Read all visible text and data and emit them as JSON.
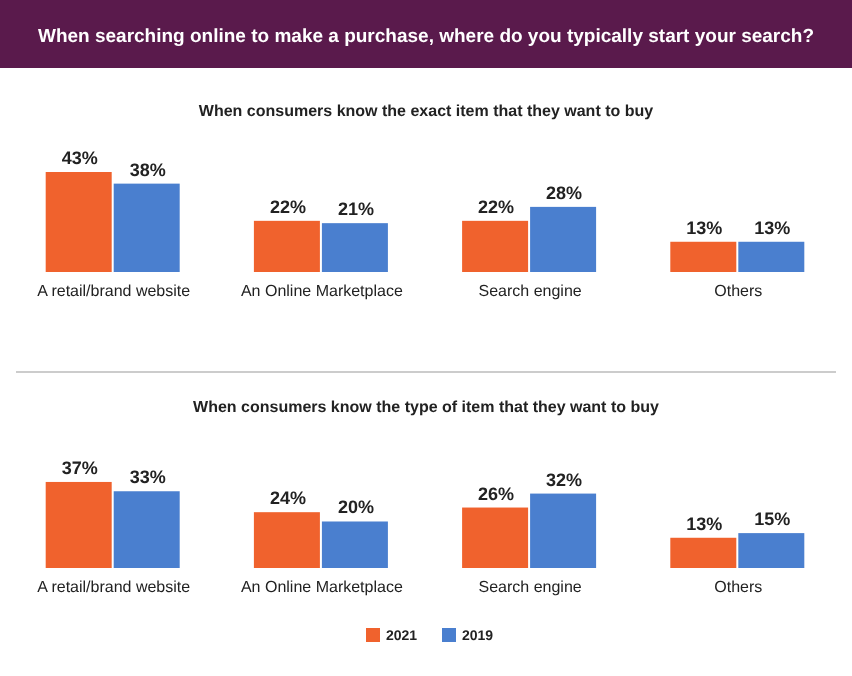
{
  "chart_data": [
    {
      "type": "bar",
      "title": "When searching online to make a purchase, where do you typically start your search?",
      "subtitle": "When consumers know the exact item that they want to buy",
      "categories": [
        "A retail/brand website",
        "An Online Marketplace",
        "Search engine",
        "Others"
      ],
      "series": [
        {
          "color": "#f0622d",
          "values": [
            43,
            22,
            22,
            13
          ],
          "value_labels": [
            "43%",
            "22%",
            "22%",
            "13%"
          ]
        },
        {
          "color": "#4a7fcf",
          "values": [
            38,
            21,
            28,
            13
          ],
          "value_labels": [
            "38%",
            "21%",
            "28%",
            "13%"
          ]
        }
      ],
      "legend": false
    },
    {
      "type": "bar",
      "subtitle": "When consumers know the type of item that they want to buy",
      "categories": [
        "A retail/brand website",
        "An Online Marketplace",
        "Search engine",
        "Others"
      ],
      "series": [
        {
          "name": "2021",
          "color": "#f0622d",
          "values": [
            37,
            24,
            26,
            13
          ],
          "value_labels": [
            "37%",
            "24%",
            "26%",
            "13%"
          ]
        },
        {
          "name": "2019",
          "color": "#4a7fcf",
          "values": [
            33,
            20,
            32,
            15
          ],
          "value_labels": [
            "33%",
            "20%",
            "32%",
            "15%"
          ]
        }
      ],
      "legend": "bottom"
    }
  ]
}
